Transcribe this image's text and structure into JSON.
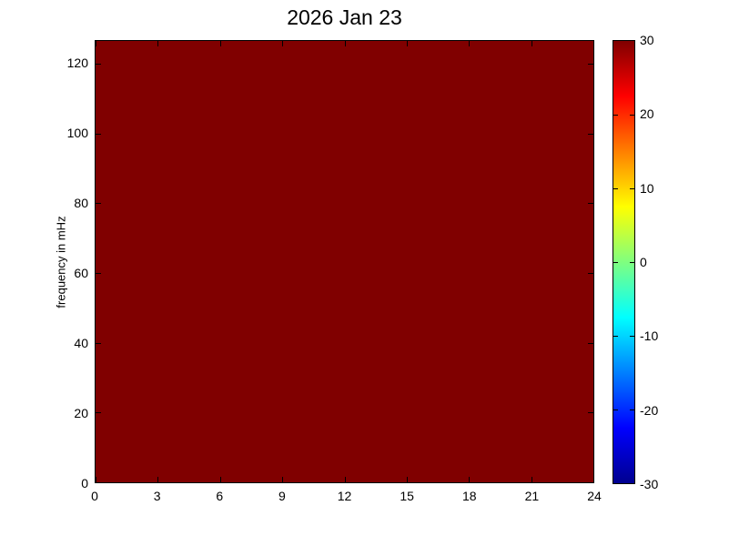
{
  "figure": {
    "background_color": "#ffffff",
    "title": "2026 Jan 23"
  },
  "chart_data": {
    "type": "heatmap",
    "title": "2026 Jan 23",
    "xlabel": "",
    "ylabel": "frequency in mHz",
    "xlim": [
      0,
      24
    ],
    "ylim": [
      0,
      126.5
    ],
    "x_ticks": [
      0,
      3,
      6,
      9,
      12,
      15,
      18,
      21,
      24
    ],
    "y_ticks": [
      0,
      20,
      40,
      60,
      80,
      100,
      120
    ],
    "grid": false,
    "values_description": "uniform data field saturated at the colorbar maximum across all times (0-24 h) and frequencies (0-126.5 mHz)",
    "uniform_value": 30,
    "field_fill_color": "#800000",
    "axis_color": "#000000",
    "colorbar": {
      "position": "right",
      "min": -30,
      "max": 30,
      "ticks": [
        30,
        20,
        10,
        0,
        -10,
        -20,
        -30
      ],
      "colormap": "jet",
      "gradient_stops": [
        {
          "frac": 0.0,
          "color": "#00008f"
        },
        {
          "frac": 0.125,
          "color": "#0000ff"
        },
        {
          "frac": 0.375,
          "color": "#00ffff"
        },
        {
          "frac": 0.625,
          "color": "#ffff00"
        },
        {
          "frac": 0.875,
          "color": "#ff0000"
        },
        {
          "frac": 1.0,
          "color": "#800000"
        }
      ]
    }
  }
}
